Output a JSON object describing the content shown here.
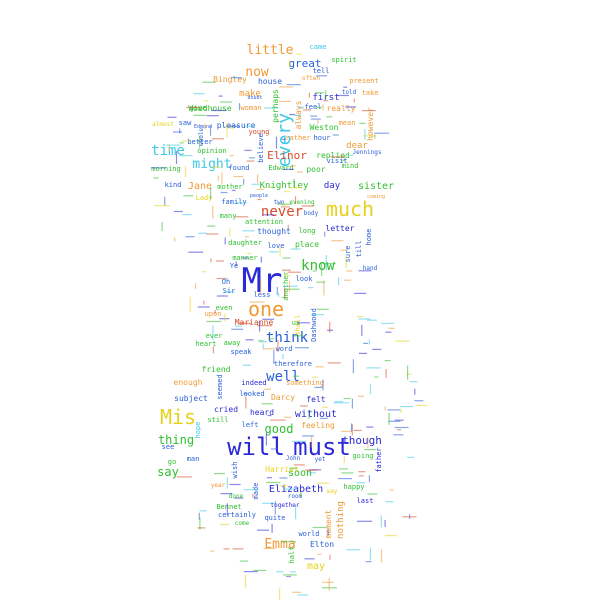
{
  "words": [
    {
      "text": "Mr",
      "color": "#2a2ad8"
    },
    {
      "text": "will",
      "color": "#2a2ad8"
    },
    {
      "text": "must",
      "color": "#2a2ad8"
    },
    {
      "text": "much",
      "color": "#e6d21c"
    },
    {
      "text": "Mis",
      "color": "#e6d21c"
    },
    {
      "text": "one",
      "color": "#ef9a35"
    },
    {
      "text": "every",
      "color": "#3cc8e6"
    },
    {
      "text": "know",
      "color": "#2fbf2f"
    },
    {
      "text": "think",
      "color": "#2a5fd8"
    },
    {
      "text": "well",
      "color": "#2a5fd8"
    },
    {
      "text": "never",
      "color": "#d84a2a"
    },
    {
      "text": "time",
      "color": "#3cc8e6"
    },
    {
      "text": "might",
      "color": "#3cc8e6"
    },
    {
      "text": "little",
      "color": "#ef9a35"
    },
    {
      "text": "now",
      "color": "#ef9a35"
    },
    {
      "text": "Emma",
      "color": "#ef9a35"
    },
    {
      "text": "good",
      "color": "#2fbf2f"
    },
    {
      "text": "say",
      "color": "#2fbf2f"
    },
    {
      "text": "thing",
      "color": "#2fbf2f"
    },
    {
      "text": "great",
      "color": "#2a5fd8"
    },
    {
      "text": "though",
      "color": "#2a2ad8"
    },
    {
      "text": "Elizabeth",
      "color": "#2a2ad8"
    },
    {
      "text": "Elinor",
      "color": "#d84a2a"
    },
    {
      "text": "Jane",
      "color": "#ef9a35"
    },
    {
      "text": "sister",
      "color": "#2fbf2f"
    },
    {
      "text": "Knightley",
      "color": "#2fbf2f"
    },
    {
      "text": "day",
      "color": "#2a2ad8"
    },
    {
      "text": "may",
      "color": "#e6d21c"
    },
    {
      "text": "soon",
      "color": "#2fbf2f"
    },
    {
      "text": "without",
      "color": "#2a2ad8"
    },
    {
      "text": "first",
      "color": "#2a2ad8"
    },
    {
      "text": "make",
      "color": "#ef9a35"
    },
    {
      "text": "Woodhouse",
      "color": "#2fbf2f"
    },
    {
      "text": "Bingley",
      "color": "#ef9a35"
    },
    {
      "text": "house",
      "color": "#2a5fd8"
    },
    {
      "text": "dear",
      "color": "#ef9a35"
    },
    {
      "text": "replied",
      "color": "#2fbf2f"
    },
    {
      "text": "poor",
      "color": "#2fbf2f"
    },
    {
      "text": "friend",
      "color": "#2fbf2f"
    },
    {
      "text": "enough",
      "color": "#ef9a35"
    },
    {
      "text": "subject",
      "color": "#2a5fd8"
    },
    {
      "text": "Marianne",
      "color": "#d84a2a"
    },
    {
      "text": "Harriet",
      "color": "#e6d21c"
    },
    {
      "text": "Darcy",
      "color": "#ef9a35"
    },
    {
      "text": "Weston",
      "color": "#2fbf2f"
    },
    {
      "text": "pleasure",
      "color": "#2a5fd8"
    },
    {
      "text": "mother",
      "color": "#2fbf2f"
    },
    {
      "text": "family",
      "color": "#2a5fd8"
    },
    {
      "text": "thought",
      "color": "#2a5fd8"
    },
    {
      "text": "letter",
      "color": "#2a2ad8"
    },
    {
      "text": "love",
      "color": "#2a5fd8"
    },
    {
      "text": "place",
      "color": "#2fbf2f"
    },
    {
      "text": "feeling",
      "color": "#ef9a35"
    },
    {
      "text": "felt",
      "color": "#2a2ad8"
    },
    {
      "text": "heard",
      "color": "#2a2ad8"
    },
    {
      "text": "cried",
      "color": "#2a2ad8"
    },
    {
      "text": "Colonel",
      "color": "#e6d21c"
    },
    {
      "text": "Bennet",
      "color": "#2fbf2f"
    },
    {
      "text": "Elton",
      "color": "#2a5fd8"
    },
    {
      "text": "world",
      "color": "#2a5fd8"
    },
    {
      "text": "nothing",
      "color": "#ef9a35"
    },
    {
      "text": "moment",
      "color": "#ef9a35"
    },
    {
      "text": "Dashwood",
      "color": "#2a5fd8"
    },
    {
      "text": "shall",
      "color": "#e6d21c"
    },
    {
      "text": "always",
      "color": "#ef9a35"
    },
    {
      "text": "however",
      "color": "#ef9a35"
    },
    {
      "text": "perhaps",
      "color": "#2fbf2f"
    },
    {
      "text": "really",
      "color": "#ef9a35"
    },
    {
      "text": "came",
      "color": "#3cc8e6"
    },
    {
      "text": "tell",
      "color": "#2a5fd8"
    },
    {
      "text": "present",
      "color": "#ef9a35"
    },
    {
      "text": "give",
      "color": "#2fbf2f"
    },
    {
      "text": "woman",
      "color": "#ef9a35"
    },
    {
      "text": "saw",
      "color": "#2a5fd8"
    },
    {
      "text": "young",
      "color": "#d84a2a"
    },
    {
      "text": "opinion",
      "color": "#2fbf2f"
    },
    {
      "text": "better",
      "color": "#2a5fd8"
    },
    {
      "text": "morning",
      "color": "#2fbf2f"
    },
    {
      "text": "found",
      "color": "#2a5fd8"
    },
    {
      "text": "Edward",
      "color": "#2fbf2f"
    },
    {
      "text": "kind",
      "color": "#2a5fd8"
    },
    {
      "text": "Lady",
      "color": "#e6d21c"
    },
    {
      "text": "many",
      "color": "#2fbf2f"
    },
    {
      "text": "daughter",
      "color": "#2fbf2f"
    },
    {
      "text": "manner",
      "color": "#2fbf2f"
    },
    {
      "text": "Sir",
      "color": "#2a5fd8"
    },
    {
      "text": "Oh",
      "color": "#2a5fd8"
    },
    {
      "text": "Ye",
      "color": "#2a5fd8"
    },
    {
      "text": "less",
      "color": "#2a5fd8"
    },
    {
      "text": "look",
      "color": "#2a5fd8"
    },
    {
      "text": "upon",
      "color": "#ef9a35"
    },
    {
      "text": "even",
      "color": "#2fbf2f"
    },
    {
      "text": "ever",
      "color": "#2fbf2f"
    },
    {
      "text": "heart",
      "color": "#2fbf2f"
    },
    {
      "text": "away",
      "color": "#2fbf2f"
    },
    {
      "text": "speak",
      "color": "#2a5fd8"
    },
    {
      "text": "word",
      "color": "#2a5fd8"
    },
    {
      "text": "therefore",
      "color": "#2a5fd8"
    },
    {
      "text": "indeed",
      "color": "#2a2ad8"
    },
    {
      "text": "something",
      "color": "#ef9a35"
    },
    {
      "text": "looked",
      "color": "#2a5fd8"
    },
    {
      "text": "still",
      "color": "#2fbf2f"
    },
    {
      "text": "hope",
      "color": "#3cc8e6"
    },
    {
      "text": "see",
      "color": "#2a5fd8"
    },
    {
      "text": "man",
      "color": "#2a5fd8"
    },
    {
      "text": "go",
      "color": "#2fbf2f"
    },
    {
      "text": "John",
      "color": "#2a5fd8"
    },
    {
      "text": "yet",
      "color": "#2a5fd8"
    },
    {
      "text": "going",
      "color": "#2fbf2f"
    },
    {
      "text": "father",
      "color": "#2a2ad8"
    },
    {
      "text": "happy",
      "color": "#2fbf2f"
    },
    {
      "text": "last",
      "color": "#2a2ad8"
    },
    {
      "text": "room",
      "color": "#2a5fd8"
    },
    {
      "text": "way",
      "color": "#e6d21c"
    },
    {
      "text": "done",
      "color": "#2fbf2f"
    },
    {
      "text": "made",
      "color": "#2a5fd8"
    },
    {
      "text": "wish",
      "color": "#2a5fd8"
    },
    {
      "text": "year",
      "color": "#ef9a35"
    },
    {
      "text": "certainly",
      "color": "#2a5fd8"
    },
    {
      "text": "come",
      "color": "#2fbf2f"
    },
    {
      "text": "quite",
      "color": "#2a5fd8"
    },
    {
      "text": "together",
      "color": "#2a2ad8"
    },
    {
      "text": "half",
      "color": "#2fbf2f"
    },
    {
      "text": "home",
      "color": "#2a5fd8"
    },
    {
      "text": "mind",
      "color": "#2fbf2f"
    },
    {
      "text": "sure",
      "color": "#2a5fd8"
    },
    {
      "text": "till",
      "color": "#2a5fd8"
    },
    {
      "text": "long",
      "color": "#2fbf2f"
    },
    {
      "text": "body",
      "color": "#2a5fd8"
    },
    {
      "text": "attention",
      "color": "#2fbf2f"
    },
    {
      "text": "believe",
      "color": "#2a5fd8"
    },
    {
      "text": "rather",
      "color": "#ef9a35"
    },
    {
      "text": "hour",
      "color": "#2a5fd8"
    },
    {
      "text": "mean",
      "color": "#ef9a35"
    },
    {
      "text": "feel",
      "color": "#2a5fd8"
    },
    {
      "text": "visit",
      "color": "#2a5fd8"
    },
    {
      "text": "told",
      "color": "#2a5fd8"
    },
    {
      "text": "take",
      "color": "#ef9a35"
    },
    {
      "text": "spirit",
      "color": "#2fbf2f"
    },
    {
      "text": "often",
      "color": "#ef9a35"
    },
    {
      "text": "Jennings",
      "color": "#2a5fd8"
    },
    {
      "text": "two",
      "color": "#2a5fd8"
    },
    {
      "text": "evening",
      "color": "#2fbf2f"
    },
    {
      "text": "another",
      "color": "#2fbf2f"
    },
    {
      "text": "us",
      "color": "#2fbf2f"
    },
    {
      "text": "seemed",
      "color": "#2a5fd8"
    },
    {
      "text": "left",
      "color": "#2a5fd8"
    },
    {
      "text": "almost",
      "color": "#e6d21c"
    },
    {
      "text": "whole",
      "color": "#2a5fd8"
    },
    {
      "text": "hand",
      "color": "#2a5fd8"
    },
    {
      "text": "coming",
      "color": "#ef9a35"
    },
    {
      "text": "people",
      "color": "#2a5fd8"
    },
    {
      "text": "doubt",
      "color": "#2a5fd8"
    },
    {
      "text": "Edmund",
      "color": "#2a5fd8"
    }
  ]
}
